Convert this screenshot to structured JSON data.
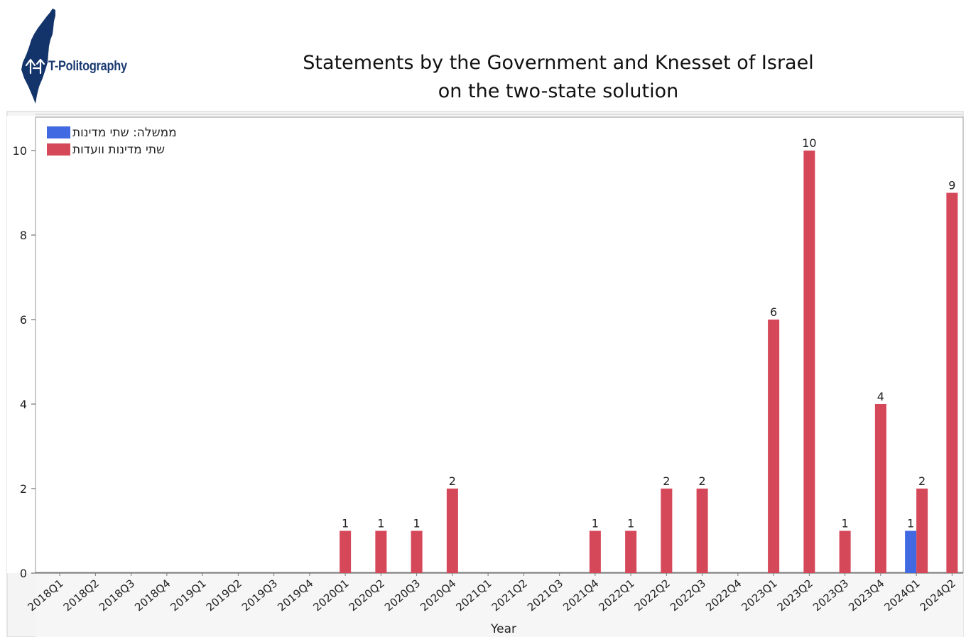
{
  "brand": {
    "name": "T-Politography",
    "logo_icon": "israel-map-icon",
    "logo_color": "#13336b"
  },
  "chart_data": {
    "type": "bar",
    "title": "Statements by the Government and Knesset of Israel",
    "subtitle": "on the two-state solution",
    "xlabel": "Year",
    "ylabel": "",
    "ylim": [
      0,
      11
    ],
    "yticks": [
      0,
      2,
      4,
      6,
      8,
      10
    ],
    "grid": false,
    "legend_position": "top-left",
    "categories": [
      "2018Q1",
      "2018Q2",
      "2018Q3",
      "2018Q4",
      "2019Q1",
      "2019Q2",
      "2019Q3",
      "2019Q4",
      "2020Q1",
      "2020Q2",
      "2020Q3",
      "2020Q4",
      "2021Q1",
      "2021Q2",
      "2021Q3",
      "2021Q4",
      "2022Q1",
      "2022Q2",
      "2022Q3",
      "2022Q4",
      "2023Q1",
      "2023Q2",
      "2023Q3",
      "2023Q4",
      "2024Q1",
      "2024Q2"
    ],
    "series": [
      {
        "name": "ממשלה: שתי מדינות",
        "color": "#4169e1",
        "values": [
          0,
          0,
          0,
          0,
          0,
          0,
          0,
          0,
          0,
          0,
          0,
          0,
          0,
          0,
          0,
          0,
          0,
          0,
          0,
          0,
          0,
          0,
          0,
          0,
          1,
          0
        ]
      },
      {
        "name": "שתי מדינות וועדות",
        "color": "#d5485a",
        "values": [
          0,
          0,
          0,
          0,
          0,
          0,
          0,
          0,
          1,
          1,
          1,
          2,
          0,
          0,
          0,
          1,
          1,
          2,
          2,
          0,
          6,
          10,
          1,
          4,
          2,
          9
        ]
      }
    ]
  }
}
